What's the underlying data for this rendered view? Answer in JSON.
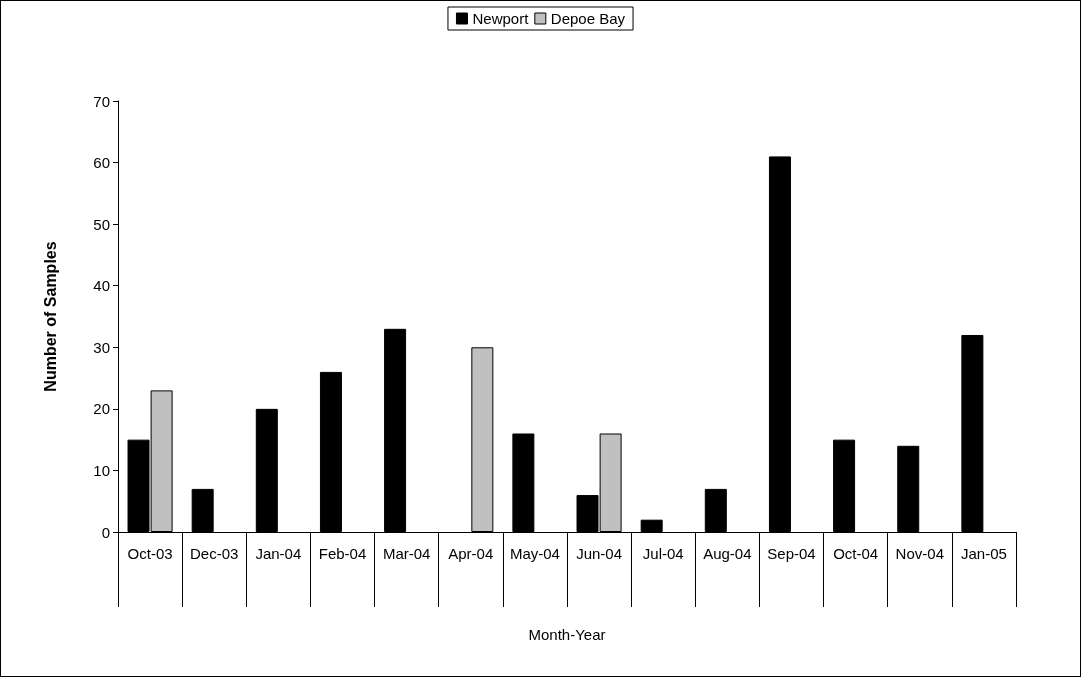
{
  "chart_data": {
    "type": "bar",
    "categories": [
      "Oct-03",
      "Dec-03",
      "Jan-04",
      "Feb-04",
      "Mar-04",
      "Apr-04",
      "May-04",
      "Jun-04",
      "Jul-04",
      "Aug-04",
      "Sep-04",
      "Oct-04",
      "Nov-04",
      "Jan-05"
    ],
    "series": [
      {
        "name": "Newport",
        "color": "#000000",
        "values": [
          15,
          7,
          20,
          26,
          33,
          null,
          16,
          6,
          2,
          7,
          61,
          15,
          14,
          32
        ]
      },
      {
        "name": "Depoe Bay",
        "color": "#c0c0c0",
        "values": [
          23,
          null,
          null,
          null,
          null,
          30,
          null,
          16,
          null,
          null,
          null,
          null,
          null,
          null
        ]
      }
    ],
    "xlabel": "Month-Year",
    "ylabel": "Number of Samples",
    "ylim": [
      0,
      70
    ],
    "yticks": [
      0,
      10,
      20,
      30,
      40,
      50,
      60,
      70
    ],
    "grid": false,
    "legend": "top"
  }
}
